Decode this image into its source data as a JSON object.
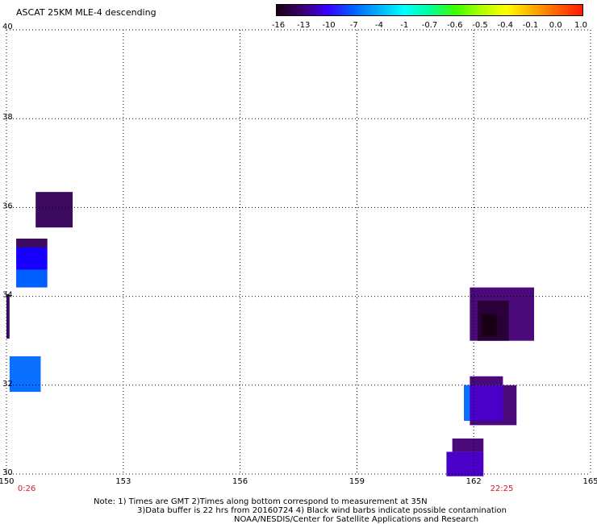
{
  "title": "ASCAT 25KM MLE-4 descending",
  "colorbar": {
    "labels": [
      "-16",
      "-13",
      "-10",
      "-7",
      "-4",
      "-1",
      "-0.7",
      "-0.6",
      "-0.5",
      "-0.4",
      "-0.1",
      "0.0",
      "1.0"
    ],
    "colors": [
      "#1a0014",
      "#3c006e",
      "#3a00ff",
      "#0060ff",
      "#00b0ff",
      "#00ffff",
      "#00ff9a",
      "#3cff00",
      "#aaff00",
      "#ffff00",
      "#ffb000",
      "#ff6000",
      "#ff1a00"
    ]
  },
  "axes": {
    "lon_ticks": [
      "150",
      "153",
      "156",
      "159",
      "162",
      "165"
    ],
    "lat_ticks": [
      "40",
      "38",
      "36",
      "34",
      "32",
      "30"
    ],
    "lon_range": [
      150,
      165
    ],
    "lat_range": [
      30,
      40
    ]
  },
  "times": [
    {
      "label": "0:26",
      "lon": 150.5
    },
    {
      "label": "22:25",
      "lon": 162.7
    }
  ],
  "cells": [
    {
      "lon": [
        150.75,
        151.7
      ],
      "lat": [
        35.55,
        36.35
      ],
      "color": "#3c0a5e"
    },
    {
      "lon": [
        150.25,
        151.05
      ],
      "lat": [
        35.1,
        35.3
      ],
      "color": "#3c0a5e"
    },
    {
      "lon": [
        150.25,
        151.05
      ],
      "lat": [
        34.6,
        35.1
      ],
      "color": "#1800ff"
    },
    {
      "lon": [
        150.25,
        151.05
      ],
      "lat": [
        34.2,
        34.6
      ],
      "color": "#0060ff"
    },
    {
      "lon": [
        150.0,
        150.08
      ],
      "lat": [
        33.05,
        34.05
      ],
      "color": "#3c0a5e"
    },
    {
      "lon": [
        150.08,
        150.88
      ],
      "lat": [
        31.85,
        32.65
      ],
      "color": "#0a6eff"
    },
    {
      "lon": [
        161.9,
        163.55
      ],
      "lat": [
        33.0,
        34.2
      ],
      "color": "#4a0a7a"
    },
    {
      "lon": [
        162.1,
        162.9
      ],
      "lat": [
        33.0,
        33.9
      ],
      "color": "#2a0038"
    },
    {
      "lon": [
        162.2,
        162.6
      ],
      "lat": [
        33.1,
        33.6
      ],
      "color": "#1a0014"
    },
    {
      "lon": [
        161.9,
        162.75
      ],
      "lat": [
        32.0,
        32.2
      ],
      "color": "#4a0a7a"
    },
    {
      "lon": [
        161.9,
        163.1
      ],
      "lat": [
        31.1,
        32.0
      ],
      "color": "#4a0a7a"
    },
    {
      "lon": [
        161.75,
        162.75
      ],
      "lat": [
        31.2,
        32.0
      ],
      "color": "#4a00c8"
    },
    {
      "lon": [
        161.75,
        161.9
      ],
      "lat": [
        31.2,
        32.0
      ],
      "color": "#0a6eff"
    },
    {
      "lon": [
        161.45,
        162.25
      ],
      "lat": [
        30.5,
        30.8
      ],
      "color": "#4a0a7a"
    },
    {
      "lon": [
        161.3,
        162.25
      ],
      "lat": [
        29.95,
        30.5
      ],
      "color": "#4a00c8"
    }
  ],
  "notes": {
    "line1": "Note: 1) Times are GMT 2)Times along bottom correspond to measurement at 35N",
    "line2": "3)Data buffer is 22 hrs from 20160724 4) Black wind barbs indicate possible contamination",
    "line3": "NOAA/NESDIS/Center for Satellite Applications and Research"
  }
}
